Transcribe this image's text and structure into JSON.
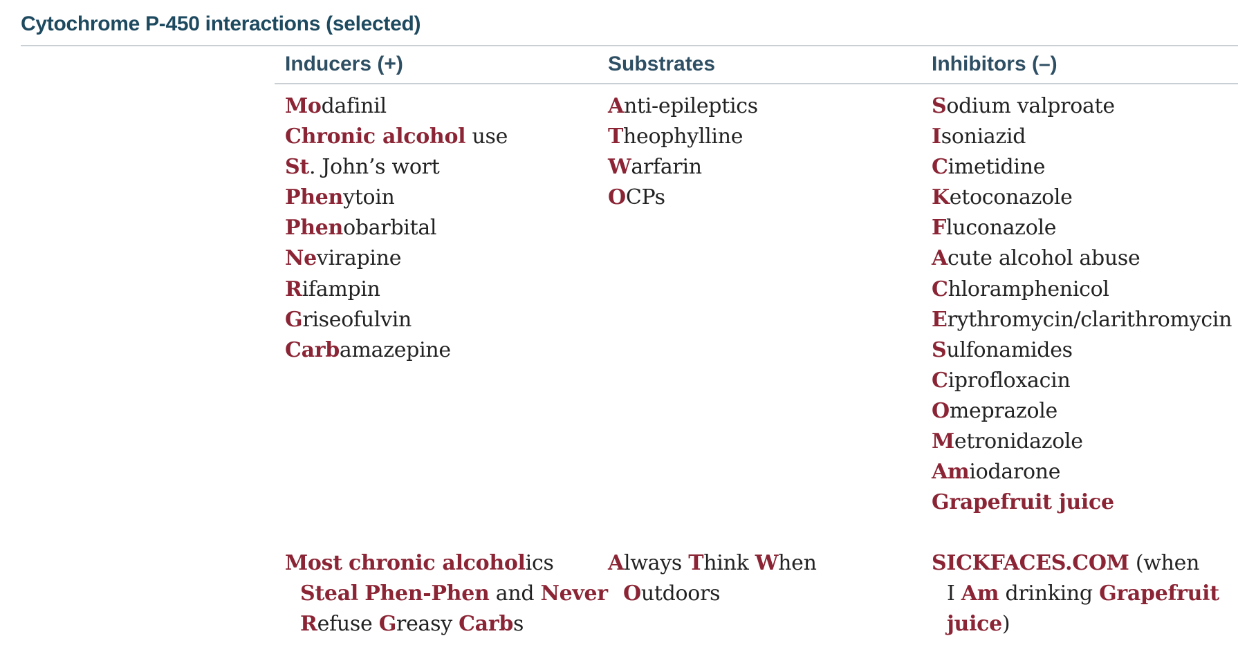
{
  "title": "Cytochrome P-450 interactions (selected)",
  "columns": [
    {
      "header": "Inducers (+)",
      "items": [
        [
          {
            "t": "Mo",
            "h": true
          },
          {
            "t": "dafinil",
            "h": false
          }
        ],
        [
          {
            "t": "Chronic alcohol",
            "h": true
          },
          {
            "t": " use",
            "h": false
          }
        ],
        [
          {
            "t": "St",
            "h": true
          },
          {
            "t": ". John’s wort",
            "h": false
          }
        ],
        [
          {
            "t": "Phen",
            "h": true
          },
          {
            "t": "ytoin",
            "h": false
          }
        ],
        [
          {
            "t": "Phen",
            "h": true
          },
          {
            "t": "obarbital",
            "h": false
          }
        ],
        [
          {
            "t": "Ne",
            "h": true
          },
          {
            "t": "virapine",
            "h": false
          }
        ],
        [
          {
            "t": "R",
            "h": true
          },
          {
            "t": "ifampin",
            "h": false
          }
        ],
        [
          {
            "t": "G",
            "h": true
          },
          {
            "t": "riseofulvin",
            "h": false
          }
        ],
        [
          {
            "t": "Carb",
            "h": true
          },
          {
            "t": "amazepine",
            "h": false
          }
        ]
      ],
      "mnemonic": [
        [
          {
            "t": "Most",
            "h": true
          },
          {
            "t": " ",
            "h": false
          },
          {
            "t": "chronic alcohol",
            "h": true
          },
          {
            "t": "ics",
            "h": false
          }
        ],
        [
          {
            "t": "Steal",
            "h": true
          },
          {
            "t": " ",
            "h": false
          },
          {
            "t": "Phen-Phen",
            "h": true
          },
          {
            "t": " and ",
            "h": false
          },
          {
            "t": "Never",
            "h": true
          }
        ],
        [
          {
            "t": "R",
            "h": true
          },
          {
            "t": "efuse ",
            "h": false
          },
          {
            "t": "G",
            "h": true
          },
          {
            "t": "reasy ",
            "h": false
          },
          {
            "t": "Carb",
            "h": true
          },
          {
            "t": "s",
            "h": false
          }
        ]
      ]
    },
    {
      "header": "Substrates",
      "items": [
        [
          {
            "t": "A",
            "h": true
          },
          {
            "t": "nti-epileptics",
            "h": false
          }
        ],
        [
          {
            "t": "T",
            "h": true
          },
          {
            "t": "heophylline",
            "h": false
          }
        ],
        [
          {
            "t": "W",
            "h": true
          },
          {
            "t": "arfarin",
            "h": false
          }
        ],
        [
          {
            "t": "O",
            "h": true
          },
          {
            "t": "CPs",
            "h": false
          }
        ]
      ],
      "mnemonic": [
        [
          {
            "t": "A",
            "h": true
          },
          {
            "t": "lways ",
            "h": false
          },
          {
            "t": "T",
            "h": true
          },
          {
            "t": "hink ",
            "h": false
          },
          {
            "t": "W",
            "h": true
          },
          {
            "t": "hen",
            "h": false
          }
        ],
        [
          {
            "t": "O",
            "h": true
          },
          {
            "t": "utdoors",
            "h": false
          }
        ]
      ]
    },
    {
      "header": "Inhibitors (–)",
      "items": [
        [
          {
            "t": "S",
            "h": true
          },
          {
            "t": "odium valproate",
            "h": false
          }
        ],
        [
          {
            "t": "I",
            "h": true
          },
          {
            "t": "soniazid",
            "h": false
          }
        ],
        [
          {
            "t": "C",
            "h": true
          },
          {
            "t": "imetidine",
            "h": false
          }
        ],
        [
          {
            "t": "K",
            "h": true
          },
          {
            "t": "etoconazole",
            "h": false
          }
        ],
        [
          {
            "t": "F",
            "h": true
          },
          {
            "t": "luconazole",
            "h": false
          }
        ],
        [
          {
            "t": "A",
            "h": true
          },
          {
            "t": "cute alcohol abuse",
            "h": false
          }
        ],
        [
          {
            "t": "C",
            "h": true
          },
          {
            "t": "hloramphenicol",
            "h": false
          }
        ],
        [
          {
            "t": "E",
            "h": true
          },
          {
            "t": "rythromycin/clarithromycin",
            "h": false
          }
        ],
        [
          {
            "t": "S",
            "h": true
          },
          {
            "t": "ulfonamides",
            "h": false
          }
        ],
        [
          {
            "t": "C",
            "h": true
          },
          {
            "t": "iprofloxacin",
            "h": false
          }
        ],
        [
          {
            "t": "O",
            "h": true
          },
          {
            "t": "meprazole",
            "h": false
          }
        ],
        [
          {
            "t": "M",
            "h": true
          },
          {
            "t": "etronidazole",
            "h": false
          }
        ],
        [
          {
            "t": "Am",
            "h": true
          },
          {
            "t": "iodarone",
            "h": false
          }
        ],
        [
          {
            "t": "Grapefruit juice",
            "h": true
          }
        ]
      ],
      "mnemonic": [
        [
          {
            "t": "SICKFACES.COM",
            "h": true
          },
          {
            "t": " (when",
            "h": false
          }
        ],
        [
          {
            "t": "I ",
            "h": false
          },
          {
            "t": "Am",
            "h": true
          },
          {
            "t": " drinking ",
            "h": false
          },
          {
            "t": "Grapefruit",
            "h": true
          }
        ],
        [
          {
            "t": "juice",
            "h": true
          },
          {
            "t": ")",
            "h": false
          }
        ]
      ]
    }
  ]
}
